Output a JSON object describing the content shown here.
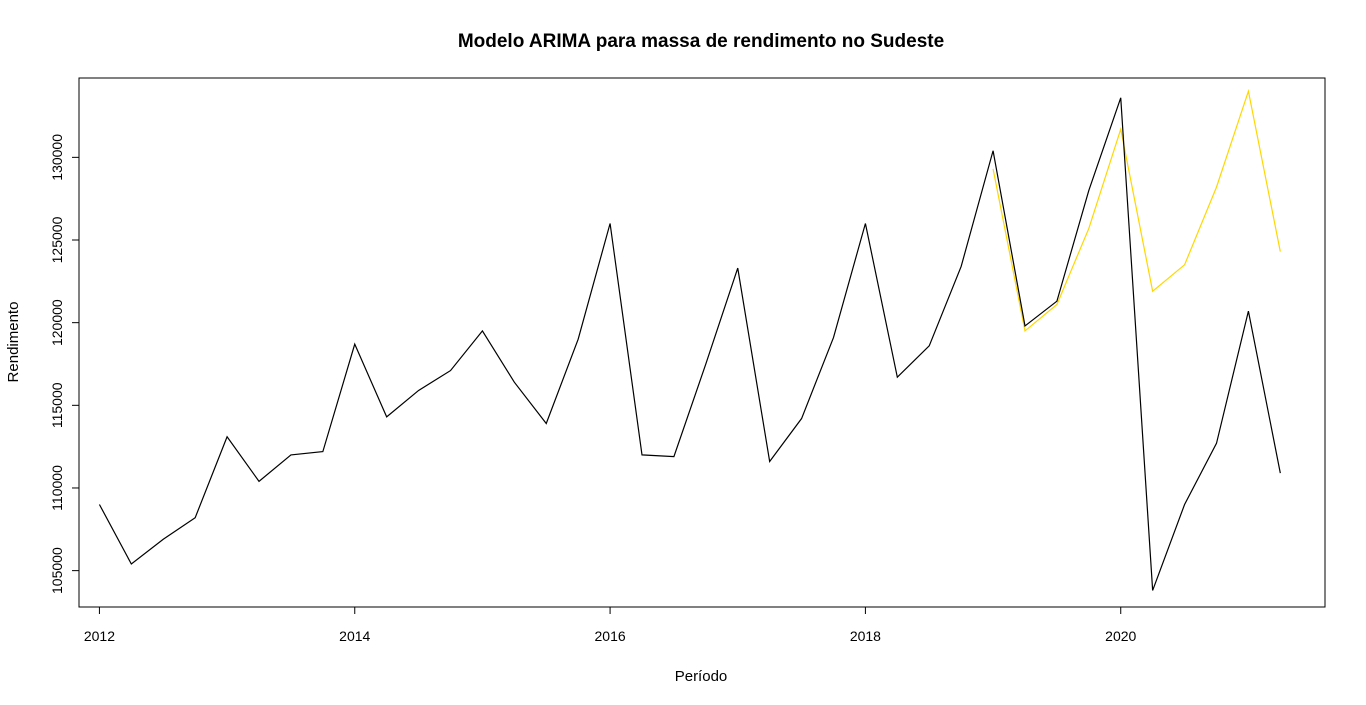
{
  "chart_data": {
    "type": "line",
    "title": "Modelo ARIMA para massa de rendimento no Sudeste",
    "xlabel": "Período",
    "ylabel": "Rendimento",
    "xlim": [
      2011.84,
      2021.6
    ],
    "ylim": [
      102800,
      134800
    ],
    "x_ticks": [
      2012,
      2014,
      2016,
      2018,
      2020
    ],
    "x_tick_labels": [
      "2012",
      "2014",
      "2016",
      "2018",
      "2020"
    ],
    "y_ticks": [
      105000,
      110000,
      115000,
      120000,
      125000,
      130000
    ],
    "y_tick_labels": [
      "105000",
      "110000",
      "115000",
      "120000",
      "125000",
      "130000"
    ],
    "grid": false,
    "series": [
      {
        "color": "#000000",
        "x": [
          2012.0,
          2012.25,
          2012.5,
          2012.75,
          2013.0,
          2013.25,
          2013.5,
          2013.75,
          2014.0,
          2014.25,
          2014.5,
          2014.75,
          2015.0,
          2015.25,
          2015.5,
          2015.75,
          2016.0,
          2016.25,
          2016.5,
          2016.75,
          2017.0,
          2017.25,
          2017.5,
          2017.75,
          2018.0,
          2018.25,
          2018.5,
          2018.75,
          2019.0,
          2019.25,
          2019.5,
          2019.75,
          2020.0,
          2020.25,
          2020.5,
          2020.75,
          2021.0,
          2021.25
        ],
        "values": [
          109000,
          105400,
          106900,
          108200,
          113100,
          110400,
          112000,
          112200,
          118700,
          114300,
          115900,
          117100,
          119500,
          116400,
          113900,
          119000,
          126000,
          112000,
          111900,
          117500,
          123300,
          111600,
          114200,
          119100,
          126000,
          116700,
          118600,
          123400,
          130400,
          119800,
          121300,
          128000,
          133600,
          103800,
          109000,
          112700,
          120700,
          110900
        ]
      },
      {
        "color": "#FFD700",
        "x": [
          2019.0,
          2019.25,
          2019.5,
          2019.75,
          2020.0,
          2020.25,
          2020.5,
          2020.75,
          2021.0,
          2021.25
        ],
        "values": [
          129300,
          119500,
          121100,
          125700,
          131700,
          121900,
          123500,
          128200,
          134000,
          124300
        ]
      }
    ]
  }
}
